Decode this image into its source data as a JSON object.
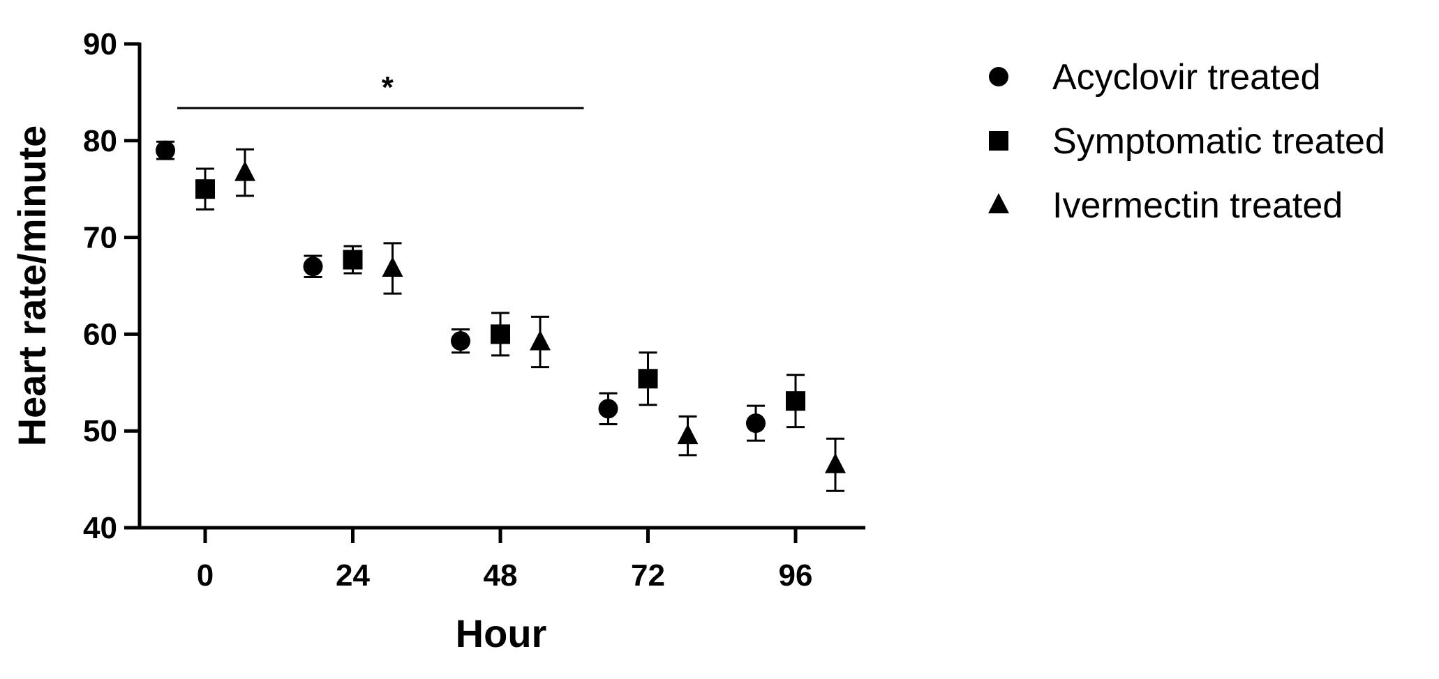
{
  "chart_data": {
    "type": "scatter",
    "xlabel": "Hour",
    "ylabel": "Heart rate/minute",
    "xticks": [
      "0",
      "24",
      "48",
      "72",
      "96"
    ],
    "ylim": [
      40,
      90
    ],
    "yticks": [
      "40",
      "50",
      "60",
      "70",
      "80",
      "90"
    ],
    "grid": false,
    "legend_position": "right",
    "significance": {
      "label": "*",
      "from_hour": 0,
      "to_hour": 72
    },
    "series": [
      {
        "name": "Acyclovir treated",
        "marker": "circle",
        "x": [
          0,
          24,
          48,
          72,
          96
        ],
        "mean": [
          79.0,
          67.0,
          59.3,
          52.3,
          50.8
        ],
        "err": [
          0.9,
          1.1,
          1.2,
          1.6,
          1.8
        ]
      },
      {
        "name": "Symptomatic treated",
        "marker": "square",
        "x": [
          0,
          24,
          48,
          72,
          96
        ],
        "mean": [
          75.0,
          67.7,
          60.0,
          55.4,
          53.1
        ],
        "err": [
          2.1,
          1.4,
          2.2,
          2.7,
          2.7
        ]
      },
      {
        "name": "Ivermectin treated",
        "marker": "triangle",
        "x": [
          0,
          24,
          48,
          72,
          96
        ],
        "mean": [
          76.7,
          66.8,
          59.2,
          49.5,
          46.5
        ],
        "err": [
          2.4,
          2.6,
          2.6,
          2.0,
          2.7
        ]
      }
    ]
  }
}
